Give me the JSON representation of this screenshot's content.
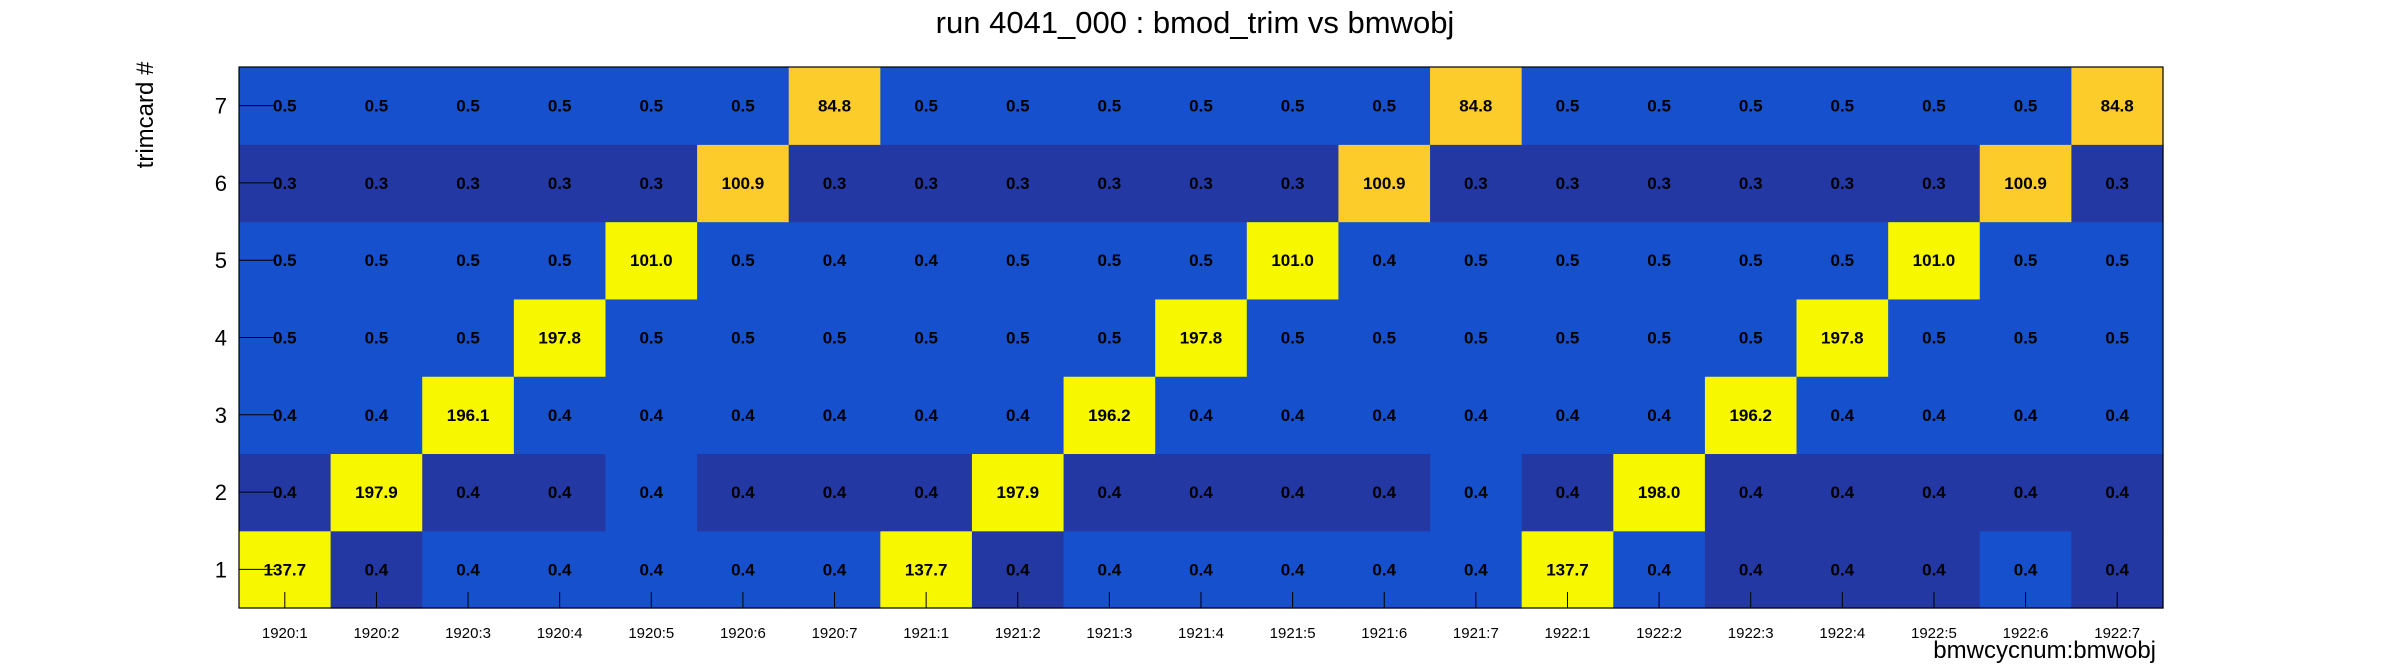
{
  "chart_data": {
    "type": "heatmap",
    "title": "run 4041_000 : bmod_trim vs bmwobj",
    "xlabel": "bmwcycnum:bmwobj",
    "ylabel": "trimcard #",
    "x_categories": [
      "1920:1",
      "1920:2",
      "1920:3",
      "1920:4",
      "1920:5",
      "1920:6",
      "1920:7",
      "1921:1",
      "1921:2",
      "1921:3",
      "1921:4",
      "1921:5",
      "1921:6",
      "1921:7",
      "1922:1",
      "1922:2",
      "1922:3",
      "1922:4",
      "1922:5",
      "1922:6",
      "1922:7"
    ],
    "y_categories": [
      "1",
      "2",
      "3",
      "4",
      "5",
      "6",
      "7"
    ],
    "grid": false,
    "legend": "none",
    "colors": {
      "max": "#f7f700",
      "high": "#fbcc2a",
      "mid": "#1650cc",
      "low": "#2438a4"
    },
    "cell_colors": [
      [
        "max",
        "low",
        "mid",
        "mid",
        "mid",
        "mid",
        "mid",
        "max",
        "low",
        "mid",
        "mid",
        "mid",
        "mid",
        "mid",
        "max",
        "mid",
        "low",
        "low",
        "low",
        "mid",
        "low"
      ],
      [
        "low",
        "max",
        "low",
        "low",
        "mid",
        "low",
        "low",
        "low",
        "max",
        "low",
        "low",
        "low",
        "low",
        "mid",
        "low",
        "max",
        "low",
        "low",
        "low",
        "low",
        "low"
      ],
      [
        "mid",
        "mid",
        "max",
        "mid",
        "mid",
        "mid",
        "mid",
        "mid",
        "mid",
        "max",
        "mid",
        "mid",
        "mid",
        "mid",
        "mid",
        "mid",
        "max",
        "mid",
        "mid",
        "mid",
        "mid"
      ],
      [
        "mid",
        "mid",
        "mid",
        "max",
        "mid",
        "mid",
        "mid",
        "mid",
        "mid",
        "mid",
        "max",
        "mid",
        "mid",
        "mid",
        "mid",
        "mid",
        "mid",
        "max",
        "mid",
        "mid",
        "mid"
      ],
      [
        "mid",
        "mid",
        "mid",
        "mid",
        "max",
        "mid",
        "mid",
        "mid",
        "mid",
        "mid",
        "mid",
        "max",
        "mid",
        "mid",
        "mid",
        "mid",
        "mid",
        "mid",
        "max",
        "mid",
        "mid"
      ],
      [
        "low",
        "low",
        "low",
        "low",
        "low",
        "high",
        "low",
        "low",
        "low",
        "low",
        "low",
        "low",
        "high",
        "low",
        "low",
        "low",
        "low",
        "low",
        "low",
        "high",
        "low"
      ],
      [
        "mid",
        "mid",
        "mid",
        "mid",
        "mid",
        "mid",
        "high",
        "mid",
        "mid",
        "mid",
        "mid",
        "mid",
        "mid",
        "high",
        "mid",
        "mid",
        "mid",
        "mid",
        "mid",
        "mid",
        "high"
      ]
    ],
    "value_labels": [
      [
        "137.7",
        "0.4",
        "0.4",
        "0.4",
        "0.4",
        "0.4",
        "0.4",
        "137.7",
        "0.4",
        "0.4",
        "0.4",
        "0.4",
        "0.4",
        "0.4",
        "137.7",
        "0.4",
        "0.4",
        "0.4",
        "0.4",
        "0.4",
        "0.4"
      ],
      [
        "0.4",
        "197.9",
        "0.4",
        "0.4",
        "0.4",
        "0.4",
        "0.4",
        "0.4",
        "197.9",
        "0.4",
        "0.4",
        "0.4",
        "0.4",
        "0.4",
        "0.4",
        "198.0",
        "0.4",
        "0.4",
        "0.4",
        "0.4",
        "0.4"
      ],
      [
        "0.4",
        "0.4",
        "196.1",
        "0.4",
        "0.4",
        "0.4",
        "0.4",
        "0.4",
        "0.4",
        "196.2",
        "0.4",
        "0.4",
        "0.4",
        "0.4",
        "0.4",
        "0.4",
        "196.2",
        "0.4",
        "0.4",
        "0.4",
        "0.4"
      ],
      [
        "0.5",
        "0.5",
        "0.5",
        "197.8",
        "0.5",
        "0.5",
        "0.5",
        "0.5",
        "0.5",
        "0.5",
        "197.8",
        "0.5",
        "0.5",
        "0.5",
        "0.5",
        "0.5",
        "0.5",
        "197.8",
        "0.5",
        "0.5",
        "0.5"
      ],
      [
        "0.5",
        "0.5",
        "0.5",
        "0.5",
        "101.0",
        "0.5",
        "0.4",
        "0.4",
        "0.5",
        "0.5",
        "0.5",
        "101.0",
        "0.4",
        "0.5",
        "0.5",
        "0.5",
        "0.5",
        "0.5",
        "101.0",
        "0.5",
        "0.5"
      ],
      [
        "0.3",
        "0.3",
        "0.3",
        "0.3",
        "0.3",
        "100.9",
        "0.3",
        "0.3",
        "0.3",
        "0.3",
        "0.3",
        "0.3",
        "100.9",
        "0.3",
        "0.3",
        "0.3",
        "0.3",
        "0.3",
        "0.3",
        "100.9",
        "0.3"
      ],
      [
        "0.5",
        "0.5",
        "0.5",
        "0.5",
        "0.5",
        "0.5",
        "84.8",
        "0.5",
        "0.5",
        "0.5",
        "0.5",
        "0.5",
        "0.5",
        "84.8",
        "0.5",
        "0.5",
        "0.5",
        "0.5",
        "0.5",
        "0.5",
        "84.8"
      ]
    ]
  }
}
